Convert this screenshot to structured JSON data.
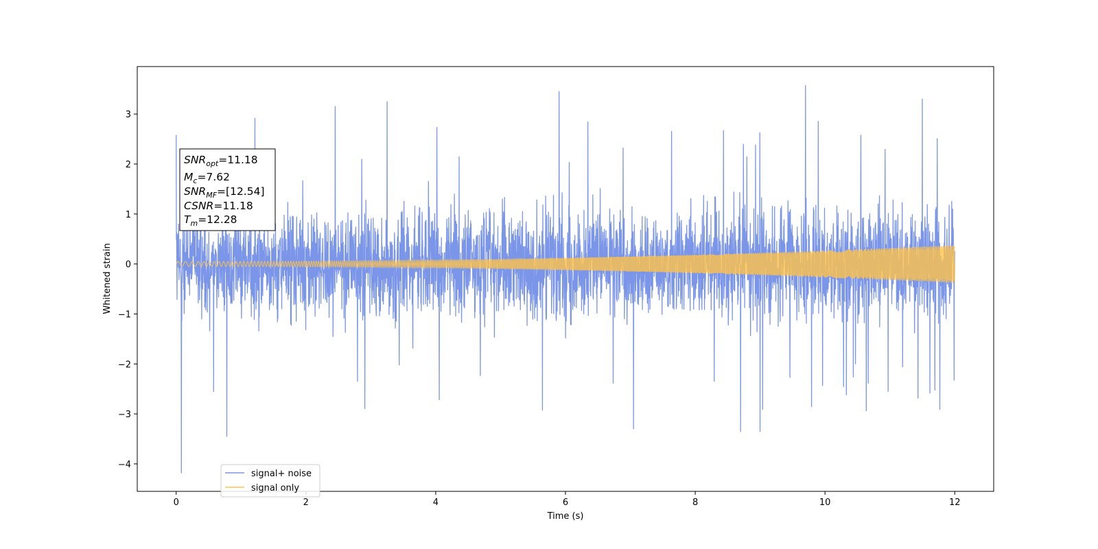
{
  "chart_data": {
    "type": "line",
    "xlabel": "Time (s)",
    "ylabel": "Whitened strain",
    "xlim": [
      -0.6,
      12.6
    ],
    "ylim": [
      -4.55,
      3.95
    ],
    "x_ticks": [
      0,
      2,
      4,
      6,
      8,
      10,
      12
    ],
    "y_ticks": [
      -4,
      -3,
      -2,
      -1,
      0,
      1,
      2,
      3
    ],
    "x_tick_labels": [
      "0",
      "2",
      "4",
      "6",
      "8",
      "10",
      "12"
    ],
    "y_tick_labels": [
      "−4",
      "−3",
      "−2",
      "−1",
      "0",
      "1",
      "2",
      "3"
    ],
    "grid": false,
    "legend_position": "lower-left",
    "series": [
      {
        "name": "signal+ noise",
        "color": "#7b96e8",
        "x_range": [
          0,
          12
        ],
        "approx_range": [
          -4.18,
          3.57
        ],
        "typical_envelope": [
          -1.6,
          1.6
        ],
        "extremes": [
          {
            "x": 0.08,
            "y": -4.18
          },
          {
            "x": 0.0,
            "y": 2.58
          },
          {
            "x": 0.78,
            "y": -3.45
          },
          {
            "x": 2.45,
            "y": 3.15
          },
          {
            "x": 3.25,
            "y": 3.25
          },
          {
            "x": 5.9,
            "y": 3.45
          },
          {
            "x": 9.7,
            "y": 3.57
          },
          {
            "x": 11.5,
            "y": 3.3
          },
          {
            "x": 7.05,
            "y": -3.3
          },
          {
            "x": 8.7,
            "y": -3.35
          },
          {
            "x": 9.0,
            "y": -3.35
          }
        ]
      },
      {
        "name": "signal only",
        "color": "#ffc34a",
        "x_range": [
          0,
          12
        ],
        "amplitude_start": 0.05,
        "amplitude_end": 0.38,
        "shape": "chirp"
      }
    ],
    "annotation": {
      "snr_opt": "SNR",
      "snr_opt_sub": "opt",
      "snr_opt_value": "=11.18",
      "mc": "M",
      "mc_sub": "c",
      "mc_value": "=7.62",
      "snr_mf": "SNR",
      "snr_mf_sub": "MF",
      "snr_mf_value": "=[12.54]",
      "csnr": "CSNR",
      "csnr_value": "=11.18",
      "tm": "T",
      "tm_sub": "m",
      "tm_value": "=12.28"
    }
  }
}
